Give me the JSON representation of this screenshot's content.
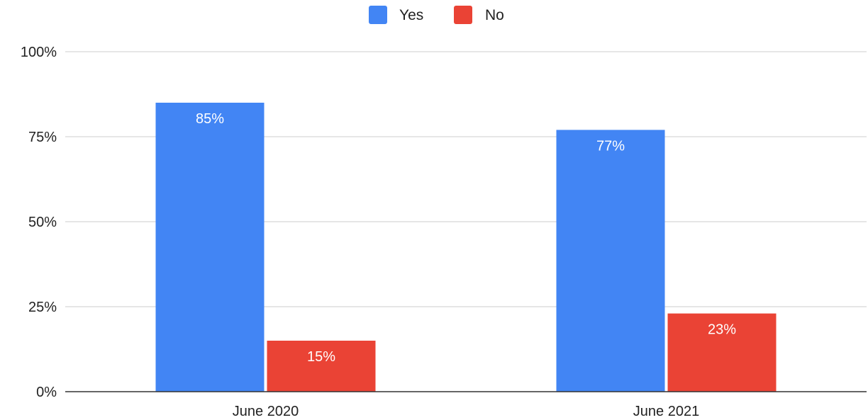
{
  "chart_data": {
    "type": "bar",
    "title": "",
    "xlabel": "",
    "ylabel": "",
    "categories": [
      "June 2020",
      "June 2021"
    ],
    "series": [
      {
        "name": "Yes",
        "color": "#4285f4",
        "values": [
          85,
          77
        ],
        "labels": [
          "85%",
          "77%"
        ]
      },
      {
        "name": "No",
        "color": "#ea4335",
        "values": [
          15,
          23
        ],
        "labels": [
          "15%",
          "23%"
        ]
      }
    ],
    "ylim": [
      0,
      100
    ],
    "yticks": [
      0,
      25,
      50,
      75,
      100
    ],
    "ytick_labels": [
      "0%",
      "25%",
      "50%",
      "75%",
      "100%"
    ],
    "grid": true,
    "legend": "top-center"
  }
}
